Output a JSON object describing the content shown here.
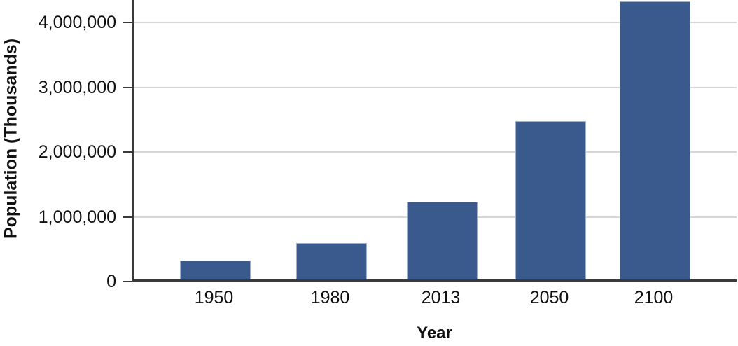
{
  "chart_data": {
    "type": "bar",
    "title": "",
    "categories": [
      "1950",
      "1980",
      "2013",
      "2050",
      "2100"
    ],
    "values": [
      290000,
      560000,
      1200000,
      2450000,
      4300000
    ],
    "xlabel": "Year",
    "ylabel": "Population (Thousands)",
    "ylim": [
      0,
      4350000
    ],
    "yticks": [
      {
        "value": 0,
        "label": "0"
      },
      {
        "value": 1000000,
        "label": "1,000,000"
      },
      {
        "value": 2000000,
        "label": "2,000,000"
      },
      {
        "value": 3000000,
        "label": "3,000,000"
      },
      {
        "value": 4000000,
        "label": "4,000,000"
      }
    ],
    "grid": "horizontal",
    "legend": "none",
    "colors": {
      "bar_fill": "#3A598C",
      "bar_border": "#9FB0CC",
      "gridline": "#D6D6D6",
      "axis": "#3A3A3A",
      "text": "#111111"
    }
  }
}
